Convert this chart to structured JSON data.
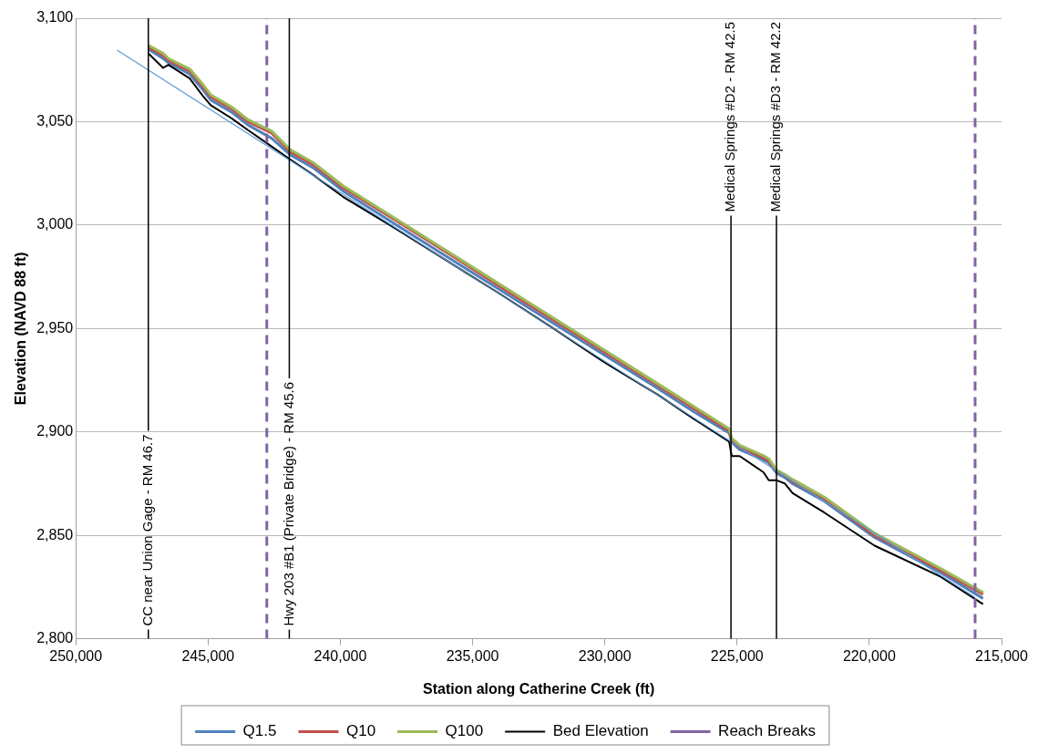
{
  "chart_data": {
    "type": "line",
    "xlabel": "Station along Catherine Creek (ft)",
    "ylabel": "Elevation (NAVD 88 ft)",
    "x": [
      247260,
      246700,
      246500,
      245700,
      245200,
      244900,
      244100,
      243500,
      242600,
      241900,
      241000,
      239900,
      238000,
      236000,
      234000,
      232000,
      230000,
      228000,
      226600,
      225300,
      225200,
      224900,
      224000,
      223800,
      223500,
      223200,
      222900,
      221700,
      219800,
      217300,
      215700
    ],
    "series": [
      {
        "name": "Q1.5",
        "color": "#4f81bd",
        "values": [
          3085,
          3080.5,
          3078.5,
          3073,
          3065.5,
          3060.5,
          3054.5,
          3048.5,
          3042,
          3034,
          3027.5,
          3016.5,
          3001,
          2985,
          2969,
          2953,
          2937,
          2921,
          2909.5,
          2899.5,
          2895,
          2891.5,
          2886.5,
          2885,
          2880,
          2878,
          2875,
          2866.5,
          2849,
          2832,
          2819.5
        ]
      },
      {
        "name": "Q10",
        "color": "#c0504d",
        "values": [
          3086,
          3082,
          3079.5,
          3074.5,
          3067,
          3062,
          3056,
          3050,
          3044.5,
          3035.5,
          3029,
          3018,
          3003,
          2987,
          2970.5,
          2954.5,
          2938.5,
          2922.5,
          2911,
          2900.5,
          2896,
          2892.5,
          2887.5,
          2886,
          2881,
          2879,
          2876,
          2867.5,
          2850,
          2833,
          2821.5
        ]
      },
      {
        "name": "Q100",
        "color": "#9bbb59",
        "values": [
          3087,
          3083,
          3080.5,
          3075.5,
          3068,
          3063,
          3057,
          3051,
          3045.5,
          3036.5,
          3030,
          3019,
          3003.8,
          2987.7,
          2971.6,
          2955.5,
          2939.4,
          2923.3,
          2912,
          2901.5,
          2897,
          2893.5,
          2888.5,
          2887,
          2881.5,
          2879.5,
          2877,
          2868.5,
          2851,
          2834,
          2822.4
        ]
      },
      {
        "name": "Bed Elevation",
        "color": "#000000",
        "values": [
          3083,
          3076,
          3077.5,
          3071,
          3062.5,
          3058,
          3051.5,
          3046,
          3038,
          3031.8,
          3024,
          3013.7,
          2999,
          2983,
          2967,
          2950.5,
          2933.5,
          2918,
          2906,
          2895.3,
          2888.3,
          2888.3,
          2880.5,
          2876.6,
          2876.6,
          2875.1,
          2870.4,
          2861,
          2845,
          2830,
          2816.7
        ]
      },
      {
        "color": "#5b9bd5",
        "x": [
          248440,
          216000
        ],
        "values": [
          3084.6,
          2820
        ]
      },
      {
        "name": "Reach Breaks",
        "color": "#8064a2",
        "line_style": "dashed",
        "x": [
          242780,
          242780
        ],
        "values": [
          2800,
          3100
        ]
      },
      {
        "color": "#8064a2",
        "line_style": "dashed",
        "x": [
          216000,
          216000
        ],
        "values": [
          2800,
          3100
        ]
      }
    ],
    "xlim": [
      250000,
      215000
    ],
    "xticks": [
      {
        "value": 250000,
        "label": "250,000"
      },
      {
        "value": 245000,
        "label": "245,000"
      },
      {
        "value": 240000,
        "label": "240,000"
      },
      {
        "value": 235000,
        "label": "235,000"
      },
      {
        "value": 230000,
        "label": "230,000"
      },
      {
        "value": 225000,
        "label": "225,000"
      },
      {
        "value": 220000,
        "label": "220,000"
      },
      {
        "value": 215000,
        "label": "215,000"
      }
    ],
    "ylim": [
      2800,
      3100
    ],
    "yticks": [
      {
        "value": 2800,
        "label": "2,800"
      },
      {
        "value": 2850,
        "label": "2,850"
      },
      {
        "value": 2900,
        "label": "2,900"
      },
      {
        "value": 2950,
        "label": "2,950"
      },
      {
        "value": 3000,
        "label": "3,000"
      },
      {
        "value": 3050,
        "label": "3,050"
      },
      {
        "value": 3100,
        "label": "3,100"
      }
    ],
    "ref_lines": [
      {
        "axis": "x",
        "value": 247260,
        "label": "CC near Union Gage - RM 46.7",
        "color": "#000000"
      },
      {
        "axis": "x",
        "value": 241930,
        "label": "Hwy 203 #B1 (Private Bridge) - RM 45.6",
        "color": "#000000"
      },
      {
        "axis": "x",
        "value": 225230,
        "label": "Medical Springs #D2 - RM 42.5",
        "color": "#000000"
      },
      {
        "axis": "x",
        "value": 223510,
        "label": "Medical Springs #D3 - RM 42.2",
        "color": "#000000"
      }
    ],
    "grid": "y",
    "legend": "bottom",
    "marker": "none",
    "line_style": "solid"
  }
}
